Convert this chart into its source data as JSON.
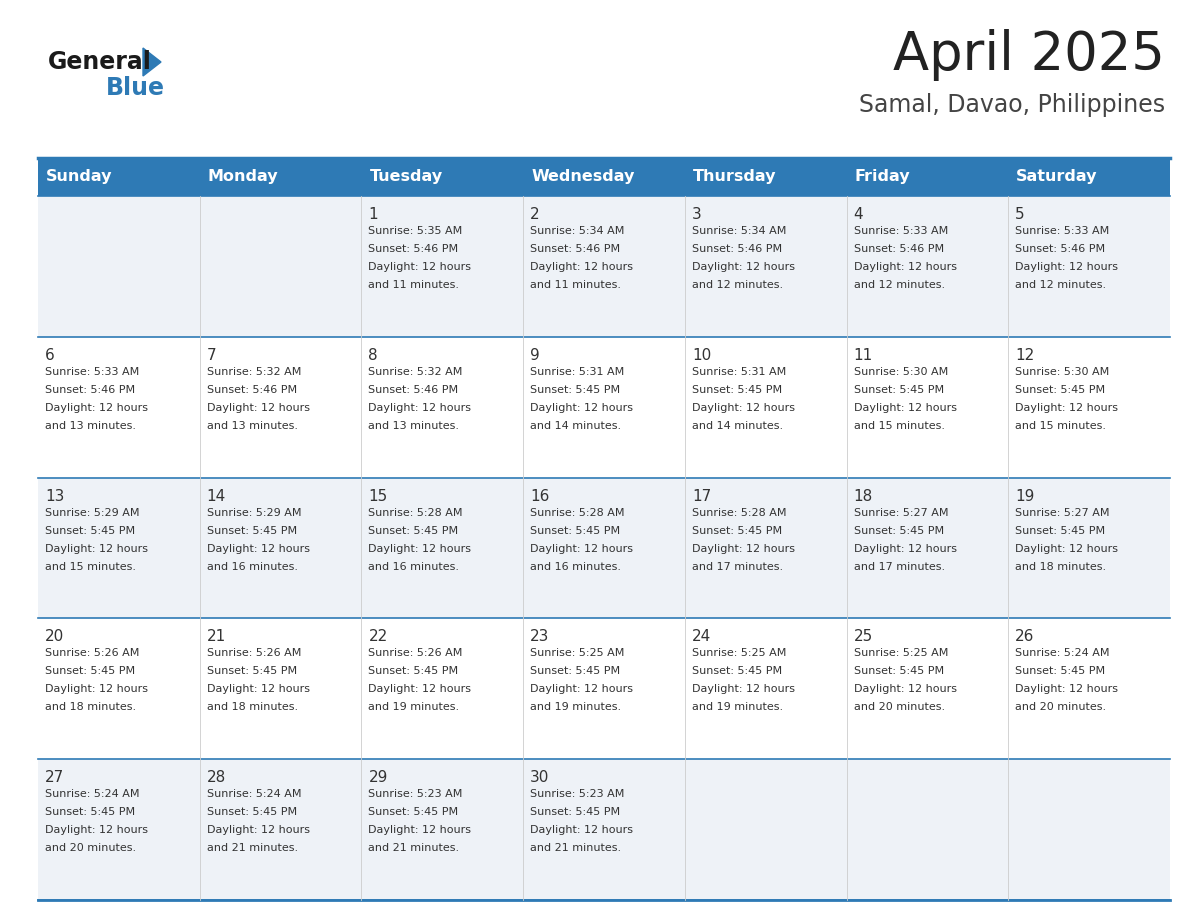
{
  "title": "April 2025",
  "subtitle": "Samal, Davao, Philippines",
  "header_bg": "#2E7AB5",
  "header_text_color": "#FFFFFF",
  "row_bg_odd": "#EEF2F7",
  "row_bg_even": "#FFFFFF",
  "border_color": "#2E7AB5",
  "cell_border_color": "#BBBBBB",
  "days_of_week": [
    "Sunday",
    "Monday",
    "Tuesday",
    "Wednesday",
    "Thursday",
    "Friday",
    "Saturday"
  ],
  "calendar_data": [
    [
      {
        "day": "",
        "sunrise": "",
        "sunset": "",
        "daylight": ""
      },
      {
        "day": "",
        "sunrise": "",
        "sunset": "",
        "daylight": ""
      },
      {
        "day": "1",
        "sunrise": "Sunrise: 5:35 AM",
        "sunset": "Sunset: 5:46 PM",
        "daylight": "Daylight: 12 hours\nand 11 minutes."
      },
      {
        "day": "2",
        "sunrise": "Sunrise: 5:34 AM",
        "sunset": "Sunset: 5:46 PM",
        "daylight": "Daylight: 12 hours\nand 11 minutes."
      },
      {
        "day": "3",
        "sunrise": "Sunrise: 5:34 AM",
        "sunset": "Sunset: 5:46 PM",
        "daylight": "Daylight: 12 hours\nand 12 minutes."
      },
      {
        "day": "4",
        "sunrise": "Sunrise: 5:33 AM",
        "sunset": "Sunset: 5:46 PM",
        "daylight": "Daylight: 12 hours\nand 12 minutes."
      },
      {
        "day": "5",
        "sunrise": "Sunrise: 5:33 AM",
        "sunset": "Sunset: 5:46 PM",
        "daylight": "Daylight: 12 hours\nand 12 minutes."
      }
    ],
    [
      {
        "day": "6",
        "sunrise": "Sunrise: 5:33 AM",
        "sunset": "Sunset: 5:46 PM",
        "daylight": "Daylight: 12 hours\nand 13 minutes."
      },
      {
        "day": "7",
        "sunrise": "Sunrise: 5:32 AM",
        "sunset": "Sunset: 5:46 PM",
        "daylight": "Daylight: 12 hours\nand 13 minutes."
      },
      {
        "day": "8",
        "sunrise": "Sunrise: 5:32 AM",
        "sunset": "Sunset: 5:46 PM",
        "daylight": "Daylight: 12 hours\nand 13 minutes."
      },
      {
        "day": "9",
        "sunrise": "Sunrise: 5:31 AM",
        "sunset": "Sunset: 5:45 PM",
        "daylight": "Daylight: 12 hours\nand 14 minutes."
      },
      {
        "day": "10",
        "sunrise": "Sunrise: 5:31 AM",
        "sunset": "Sunset: 5:45 PM",
        "daylight": "Daylight: 12 hours\nand 14 minutes."
      },
      {
        "day": "11",
        "sunrise": "Sunrise: 5:30 AM",
        "sunset": "Sunset: 5:45 PM",
        "daylight": "Daylight: 12 hours\nand 15 minutes."
      },
      {
        "day": "12",
        "sunrise": "Sunrise: 5:30 AM",
        "sunset": "Sunset: 5:45 PM",
        "daylight": "Daylight: 12 hours\nand 15 minutes."
      }
    ],
    [
      {
        "day": "13",
        "sunrise": "Sunrise: 5:29 AM",
        "sunset": "Sunset: 5:45 PM",
        "daylight": "Daylight: 12 hours\nand 15 minutes."
      },
      {
        "day": "14",
        "sunrise": "Sunrise: 5:29 AM",
        "sunset": "Sunset: 5:45 PM",
        "daylight": "Daylight: 12 hours\nand 16 minutes."
      },
      {
        "day": "15",
        "sunrise": "Sunrise: 5:28 AM",
        "sunset": "Sunset: 5:45 PM",
        "daylight": "Daylight: 12 hours\nand 16 minutes."
      },
      {
        "day": "16",
        "sunrise": "Sunrise: 5:28 AM",
        "sunset": "Sunset: 5:45 PM",
        "daylight": "Daylight: 12 hours\nand 16 minutes."
      },
      {
        "day": "17",
        "sunrise": "Sunrise: 5:28 AM",
        "sunset": "Sunset: 5:45 PM",
        "daylight": "Daylight: 12 hours\nand 17 minutes."
      },
      {
        "day": "18",
        "sunrise": "Sunrise: 5:27 AM",
        "sunset": "Sunset: 5:45 PM",
        "daylight": "Daylight: 12 hours\nand 17 minutes."
      },
      {
        "day": "19",
        "sunrise": "Sunrise: 5:27 AM",
        "sunset": "Sunset: 5:45 PM",
        "daylight": "Daylight: 12 hours\nand 18 minutes."
      }
    ],
    [
      {
        "day": "20",
        "sunrise": "Sunrise: 5:26 AM",
        "sunset": "Sunset: 5:45 PM",
        "daylight": "Daylight: 12 hours\nand 18 minutes."
      },
      {
        "day": "21",
        "sunrise": "Sunrise: 5:26 AM",
        "sunset": "Sunset: 5:45 PM",
        "daylight": "Daylight: 12 hours\nand 18 minutes."
      },
      {
        "day": "22",
        "sunrise": "Sunrise: 5:26 AM",
        "sunset": "Sunset: 5:45 PM",
        "daylight": "Daylight: 12 hours\nand 19 minutes."
      },
      {
        "day": "23",
        "sunrise": "Sunrise: 5:25 AM",
        "sunset": "Sunset: 5:45 PM",
        "daylight": "Daylight: 12 hours\nand 19 minutes."
      },
      {
        "day": "24",
        "sunrise": "Sunrise: 5:25 AM",
        "sunset": "Sunset: 5:45 PM",
        "daylight": "Daylight: 12 hours\nand 19 minutes."
      },
      {
        "day": "25",
        "sunrise": "Sunrise: 5:25 AM",
        "sunset": "Sunset: 5:45 PM",
        "daylight": "Daylight: 12 hours\nand 20 minutes."
      },
      {
        "day": "26",
        "sunrise": "Sunrise: 5:24 AM",
        "sunset": "Sunset: 5:45 PM",
        "daylight": "Daylight: 12 hours\nand 20 minutes."
      }
    ],
    [
      {
        "day": "27",
        "sunrise": "Sunrise: 5:24 AM",
        "sunset": "Sunset: 5:45 PM",
        "daylight": "Daylight: 12 hours\nand 20 minutes."
      },
      {
        "day": "28",
        "sunrise": "Sunrise: 5:24 AM",
        "sunset": "Sunset: 5:45 PM",
        "daylight": "Daylight: 12 hours\nand 21 minutes."
      },
      {
        "day": "29",
        "sunrise": "Sunrise: 5:23 AM",
        "sunset": "Sunset: 5:45 PM",
        "daylight": "Daylight: 12 hours\nand 21 minutes."
      },
      {
        "day": "30",
        "sunrise": "Sunrise: 5:23 AM",
        "sunset": "Sunset: 5:45 PM",
        "daylight": "Daylight: 12 hours\nand 21 minutes."
      },
      {
        "day": "",
        "sunrise": "",
        "sunset": "",
        "daylight": ""
      },
      {
        "day": "",
        "sunrise": "",
        "sunset": "",
        "daylight": ""
      },
      {
        "day": "",
        "sunrise": "",
        "sunset": "",
        "daylight": ""
      }
    ]
  ],
  "fig_width": 11.88,
  "fig_height": 9.18,
  "dpi": 100
}
